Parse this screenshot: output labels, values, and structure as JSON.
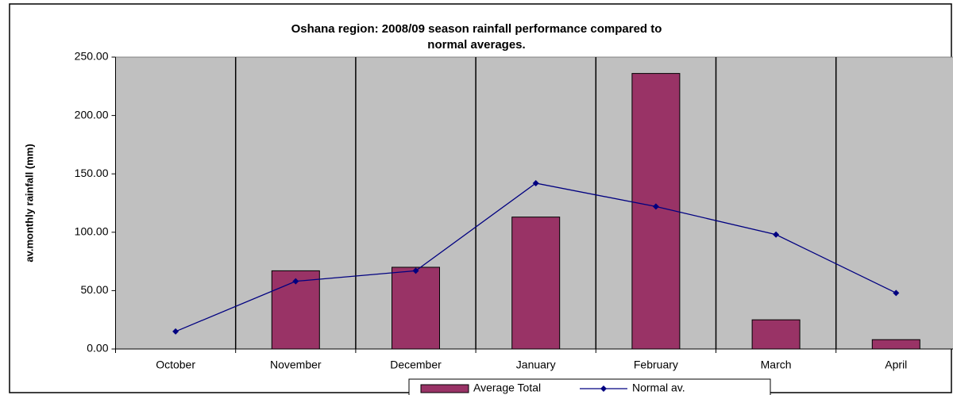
{
  "chart_data": {
    "type": "bar",
    "title": [
      "Oshana region: 2008/09 season rainfall performance compared to",
      "normal averages."
    ],
    "y_label": "av.monthly rainfall (mm)",
    "categories": [
      "October",
      "November",
      "December",
      "January",
      "February",
      "March",
      "April"
    ],
    "series": [
      {
        "name": "Average Total",
        "type": "bar",
        "color": "#993366",
        "values": [
          0,
          67,
          70,
          113,
          236,
          25,
          8
        ]
      },
      {
        "name": "Normal av.",
        "type": "line",
        "color": "#000080",
        "values": [
          15,
          58,
          67,
          142,
          122,
          98,
          48
        ]
      }
    ],
    "ylim": [
      0,
      250
    ],
    "yticks": [
      {
        "value": 0,
        "label": "0.00"
      },
      {
        "value": 50,
        "label": "50.00"
      },
      {
        "value": 100,
        "label": "100.00"
      },
      {
        "value": 150,
        "label": "150.00"
      },
      {
        "value": 200,
        "label": "200.00"
      },
      {
        "value": 250,
        "label": "250.00"
      }
    ],
    "legend": "bottom"
  }
}
